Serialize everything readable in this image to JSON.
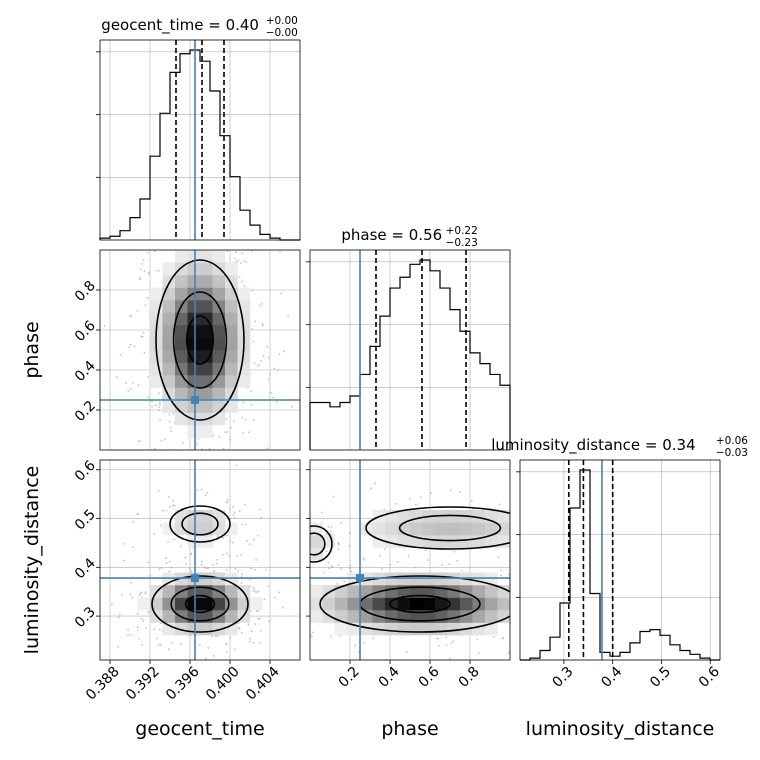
{
  "chart_data": {
    "type": "corner",
    "parameters": [
      "geocent_time",
      "phase",
      "luminosity_distance"
    ],
    "truths": [
      0.3965,
      0.25,
      0.378
    ],
    "panel_titles": {
      "geocent_time": {
        "name": "geocent_time",
        "value": "0.40",
        "plus": "+0.00",
        "minus": "−0.00"
      },
      "phase": {
        "name": "phase",
        "value": "0.56",
        "plus": "+0.22",
        "minus": "−0.23"
      },
      "luminosity_distance": {
        "name": "luminosity_distance",
        "value": "0.34",
        "plus": "+0.06",
        "minus": "−0.03"
      }
    },
    "axes": {
      "geocent_time": {
        "label": "geocent_time",
        "range": [
          0.387,
          0.407
        ],
        "ticks": [
          0.388,
          0.392,
          0.396,
          0.4,
          0.404
        ],
        "tick_labels": [
          "0.388",
          "0.392",
          "0.396",
          "0.400",
          "0.404"
        ]
      },
      "phase": {
        "label": "phase",
        "range": [
          0.0,
          1.0
        ],
        "ticks": [
          0.2,
          0.4,
          0.6,
          0.8
        ],
        "tick_labels": [
          "0.2",
          "0.4",
          "0.6",
          "0.8"
        ]
      },
      "luminosity_distance": {
        "label": "luminosity_distance",
        "range": [
          0.21,
          0.62
        ],
        "ticks": [
          0.3,
          0.4,
          0.5,
          0.6
        ],
        "tick_labels": [
          "0.3",
          "0.4",
          "0.5",
          "0.6"
        ]
      }
    },
    "histograms": {
      "geocent_time": {
        "edges_range": [
          0.387,
          0.407
        ],
        "bins": 20,
        "counts": [
          1,
          2,
          5,
          12,
          22,
          45,
          68,
          90,
          100,
          102,
          96,
          80,
          56,
          34,
          16,
          8,
          3,
          1,
          0,
          0
        ],
        "quantiles": [
          0.3946,
          0.3972,
          0.3994
        ]
      },
      "phase": {
        "edges_range": [
          0.0,
          1.0
        ],
        "bins": 20,
        "counts": [
          22,
          22,
          20,
          22,
          25,
          35,
          48,
          62,
          75,
          80,
          86,
          88,
          83,
          75,
          65,
          55,
          45,
          40,
          35,
          30
        ],
        "quantiles": [
          0.33,
          0.56,
          0.78
        ]
      },
      "luminosity_distance": {
        "edges_range": [
          0.21,
          0.62
        ],
        "bins": 20,
        "counts": [
          0,
          1,
          5,
          12,
          30,
          80,
          100,
          35,
          4,
          2,
          4,
          9,
          15,
          16,
          13,
          8,
          5,
          3,
          1,
          0
        ],
        "quantiles": [
          0.31,
          0.34,
          0.4
        ]
      }
    },
    "grid": true
  }
}
